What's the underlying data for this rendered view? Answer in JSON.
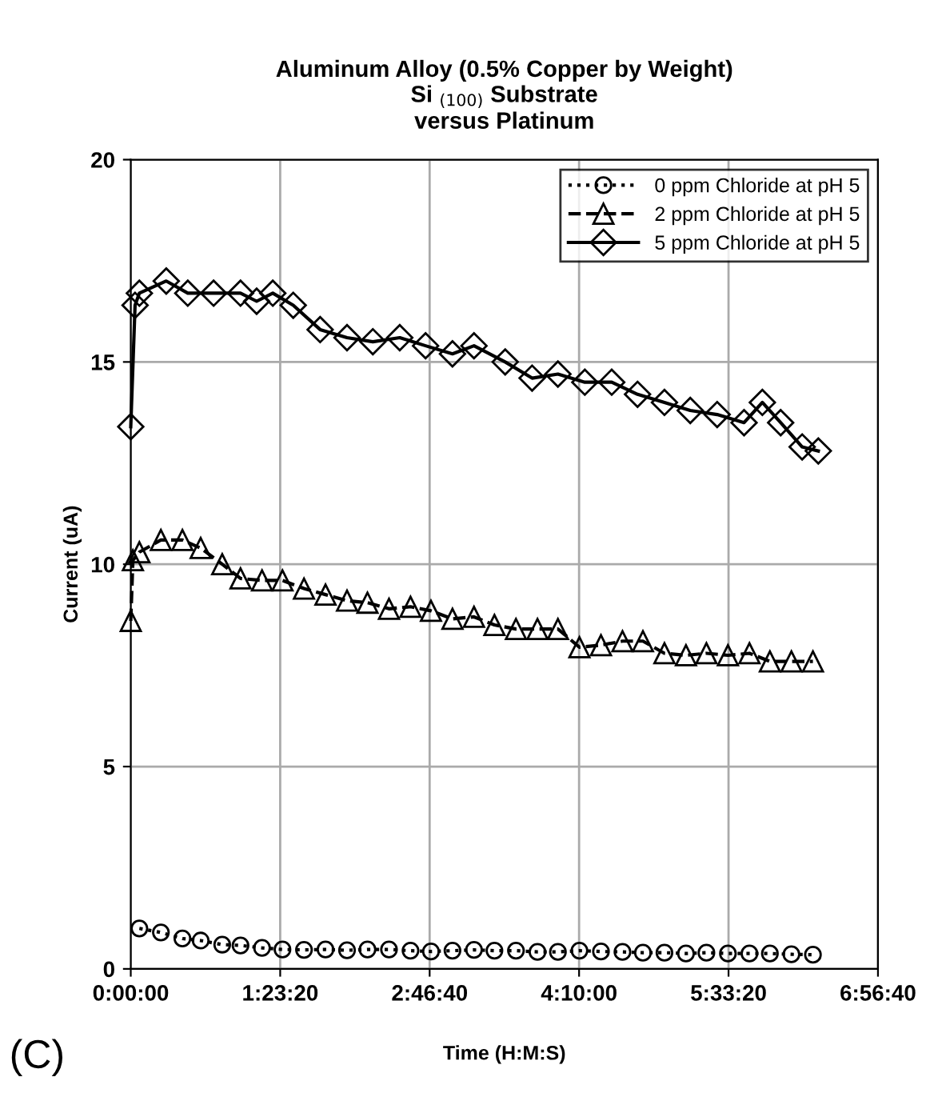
{
  "chart_data": {
    "type": "line",
    "title": "Aluminum Alloy (0.5% Copper by Weight)\nSi $_{(100)}$ Substrate\nversus Platinum",
    "xlabel": "Time (H:M:S)",
    "ylabel": "Current (uA)",
    "annotations": [
      "(C)"
    ],
    "xlim": [
      0,
      6.9444
    ],
    "xticks": [
      {
        "value": 0,
        "label": "0:00:00"
      },
      {
        "value": 1.3889,
        "label": "1:23:20"
      },
      {
        "value": 2.7778,
        "label": "2:46:40"
      },
      {
        "value": 4.1667,
        "label": "4:10:00"
      },
      {
        "value": 5.5556,
        "label": "5:33:20"
      },
      {
        "value": 6.9444,
        "label": "6:56:40"
      }
    ],
    "ylim": [
      0,
      20
    ],
    "yticks": [
      0,
      5,
      10,
      15,
      20
    ],
    "grid": true,
    "legend": "top right",
    "series": [
      {
        "name": "0 ppm Chloride at pH 5",
        "color": "#000000",
        "marker": "circle",
        "line_style": "dotted",
        "x": [
          0.08,
          0.28,
          0.48,
          0.65,
          0.85,
          1.02,
          1.22,
          1.41,
          1.61,
          1.81,
          2.01,
          2.2,
          2.4,
          2.6,
          2.79,
          2.99,
          3.19,
          3.38,
          3.58,
          3.78,
          3.97,
          4.17,
          4.37,
          4.57,
          4.76,
          4.96,
          5.16,
          5.35,
          5.55,
          5.75,
          5.94,
          6.14,
          6.34
        ],
        "values": [
          1.0,
          0.9,
          0.75,
          0.7,
          0.6,
          0.58,
          0.52,
          0.48,
          0.47,
          0.48,
          0.46,
          0.48,
          0.48,
          0.45,
          0.43,
          0.45,
          0.47,
          0.45,
          0.45,
          0.42,
          0.42,
          0.45,
          0.43,
          0.42,
          0.4,
          0.4,
          0.38,
          0.4,
          0.38,
          0.38,
          0.38,
          0.36,
          0.35
        ]
      },
      {
        "name": "2 ppm Chloride at pH 5",
        "color": "#000000",
        "marker": "triangle",
        "line_style": "dashed",
        "x": [
          0.0,
          0.02,
          0.08,
          0.28,
          0.48,
          0.65,
          0.85,
          1.02,
          1.22,
          1.41,
          1.61,
          1.81,
          2.01,
          2.2,
          2.4,
          2.6,
          2.79,
          2.99,
          3.19,
          3.38,
          3.58,
          3.78,
          3.97,
          4.17,
          4.37,
          4.57,
          4.76,
          4.96,
          5.16,
          5.35,
          5.55,
          5.75,
          5.94,
          6.14,
          6.34
        ],
        "values": [
          8.6,
          10.1,
          10.3,
          10.6,
          10.6,
          10.4,
          10.0,
          9.65,
          9.6,
          9.6,
          9.4,
          9.25,
          9.1,
          9.05,
          8.9,
          8.95,
          8.85,
          8.65,
          8.7,
          8.5,
          8.4,
          8.4,
          8.4,
          7.95,
          8.0,
          8.1,
          8.1,
          7.8,
          7.75,
          7.8,
          7.75,
          7.8,
          7.6,
          7.6,
          7.6
        ]
      },
      {
        "name": "5 ppm Chloride at pH 5",
        "color": "#000000",
        "marker": "diamond",
        "line_style": "solid",
        "x": [
          0.0,
          0.04,
          0.08,
          0.33,
          0.53,
          0.77,
          1.02,
          1.17,
          1.32,
          1.51,
          1.76,
          2.01,
          2.25,
          2.5,
          2.74,
          2.99,
          3.19,
          3.48,
          3.73,
          3.97,
          4.22,
          4.47,
          4.71,
          4.96,
          5.2,
          5.45,
          5.7,
          5.87,
          6.04,
          6.24,
          6.39
        ],
        "values": [
          13.4,
          16.4,
          16.7,
          17.0,
          16.7,
          16.7,
          16.7,
          16.5,
          16.7,
          16.4,
          15.8,
          15.6,
          15.5,
          15.6,
          15.4,
          15.2,
          15.4,
          15.0,
          14.6,
          14.7,
          14.5,
          14.5,
          14.2,
          14.0,
          13.8,
          13.7,
          13.5,
          14.0,
          13.5,
          12.9,
          12.8
        ]
      }
    ]
  }
}
